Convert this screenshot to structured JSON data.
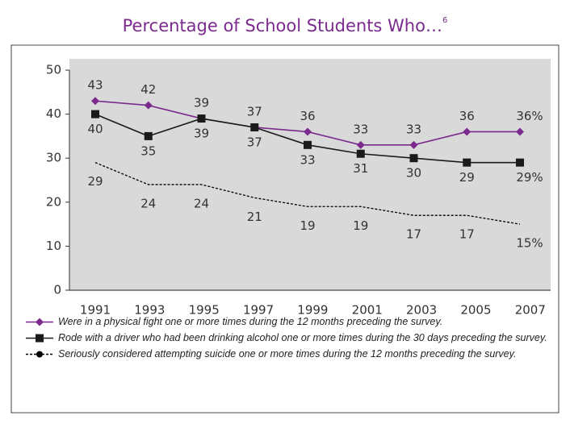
{
  "chart_data": {
    "type": "line",
    "title": "Percentage of School Students Who…",
    "title_footnote": "6",
    "categories": [
      "1991",
      "1993",
      "1995",
      "1997",
      "1999",
      "2001",
      "2003",
      "2005",
      "2007"
    ],
    "ylim": [
      0,
      50
    ],
    "yticks": [
      0,
      10,
      20,
      30,
      40,
      50
    ],
    "grid": false,
    "legend": "bottom",
    "series": [
      {
        "name": "Were in a physical fight one or more times during the 12 months preceding the survey.",
        "color": "#7b2a8e",
        "marker": "diamond",
        "dash": "solid",
        "values": [
          43,
          42,
          39,
          37,
          36,
          33,
          33,
          36,
          36
        ],
        "value_labels": [
          "43",
          "42",
          "39",
          "37",
          "36",
          "33",
          "33",
          "36",
          "36%"
        ]
      },
      {
        "name": "Rode with a driver who had been drinking alcohol one or more times during the 30 days preceding the survey.",
        "color": "#1a1a1a",
        "marker": "square",
        "dash": "solid",
        "values": [
          40,
          35,
          39,
          37,
          33,
          31,
          30,
          29,
          29
        ],
        "value_labels": [
          "40",
          "35",
          "39",
          "37",
          "33",
          "31",
          "30",
          "29",
          "29%"
        ]
      },
      {
        "name": "Seriously considered attempting suicide one or more times during the 12 months preceding the survey.",
        "color": "#000000",
        "marker": "circle",
        "dash": "dashed",
        "values": [
          29,
          24,
          24,
          21,
          19,
          19,
          17,
          17,
          15
        ],
        "value_labels": [
          "29",
          "24",
          "24",
          "21",
          "19",
          "19",
          "17",
          "17",
          "15%"
        ]
      }
    ]
  }
}
